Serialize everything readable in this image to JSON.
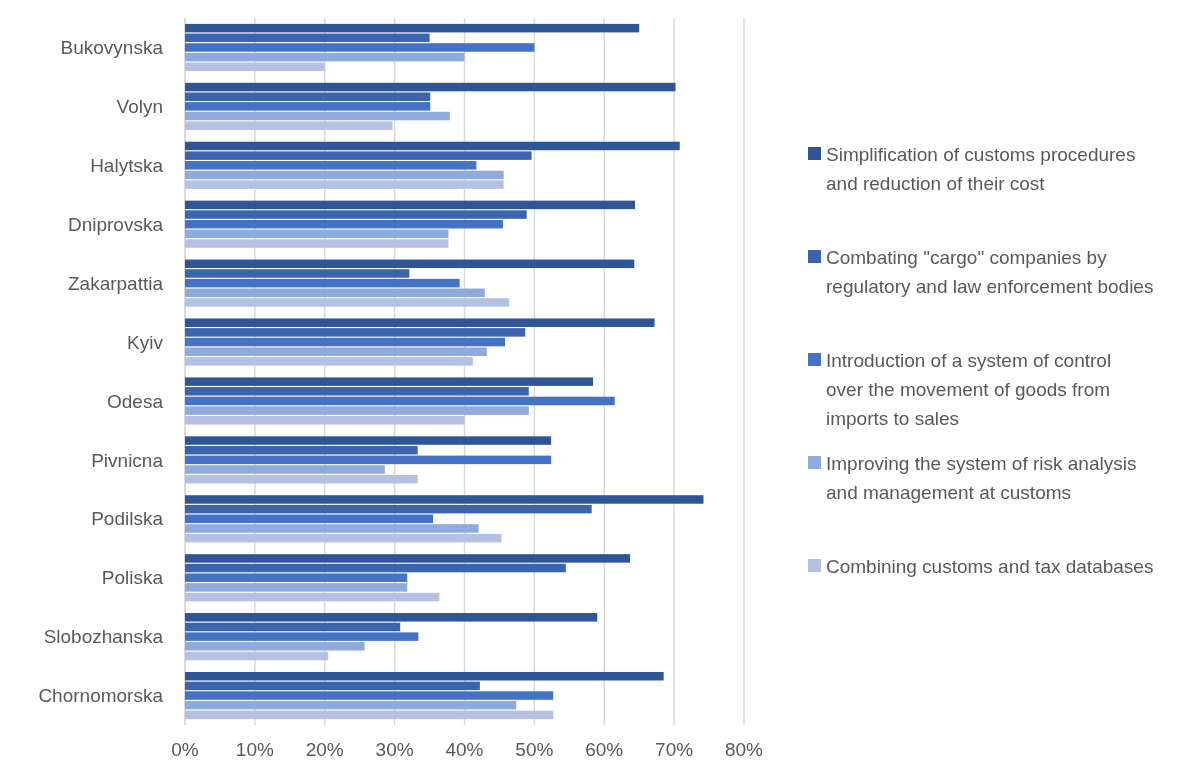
{
  "chart_data": {
    "type": "bar",
    "orientation": "horizontal",
    "categories": [
      "Bukovynska",
      "Volyn",
      "Halytska",
      "Dniprovska",
      "Zakarpattia",
      "Kyiv",
      "Odesa",
      "Pivnicna",
      "Podilska",
      "Poliska",
      "Slobozhanska",
      "Chornomorska"
    ],
    "series": [
      {
        "name": "Simplification of customs procedures and reduction of their cost",
        "color": "#2f5597",
        "values": [
          65.0,
          70.2,
          70.8,
          64.4,
          64.3,
          67.2,
          58.4,
          52.4,
          74.2,
          63.7,
          59.0,
          68.5
        ]
      },
      {
        "name": "Combating \"cargo\" companies by regulatory and law enforcement bodies",
        "color": "#3a64ad",
        "values": [
          35.0,
          35.1,
          49.6,
          48.9,
          32.1,
          48.7,
          49.2,
          33.3,
          58.2,
          54.5,
          30.8,
          42.2
        ]
      },
      {
        "name": "Introduction of a system of control over the movement of goods from imports to sales",
        "color": "#4472c4",
        "values": [
          50.0,
          35.1,
          41.7,
          45.5,
          39.3,
          45.8,
          61.5,
          52.4,
          35.5,
          31.8,
          33.4,
          52.7
        ]
      },
      {
        "name": "Improving the system of risk analysis and management at customs",
        "color": "#8faadc",
        "values": [
          40.0,
          37.9,
          45.6,
          37.7,
          42.9,
          43.2,
          49.2,
          28.6,
          42.0,
          31.8,
          25.7,
          47.4
        ]
      },
      {
        "name": "Combining customs and tax databases",
        "color": "#b4c1e2",
        "values": [
          20.0,
          29.7,
          45.6,
          37.7,
          46.4,
          41.2,
          40.0,
          33.3,
          45.3,
          36.4,
          20.5,
          52.7
        ]
      }
    ],
    "xlim": [
      0,
      80
    ],
    "xticks": [
      {
        "value": 0,
        "label": "0%"
      },
      {
        "value": 10,
        "label": "10%"
      },
      {
        "value": 20,
        "label": "20%"
      },
      {
        "value": 30,
        "label": "30%"
      },
      {
        "value": 40,
        "label": "40%"
      },
      {
        "value": 50,
        "label": "50%"
      },
      {
        "value": 60,
        "label": "60%"
      },
      {
        "value": 70,
        "label": "70%"
      },
      {
        "value": 80,
        "label": "80%"
      }
    ],
    "grid": "x",
    "legend": "right"
  }
}
